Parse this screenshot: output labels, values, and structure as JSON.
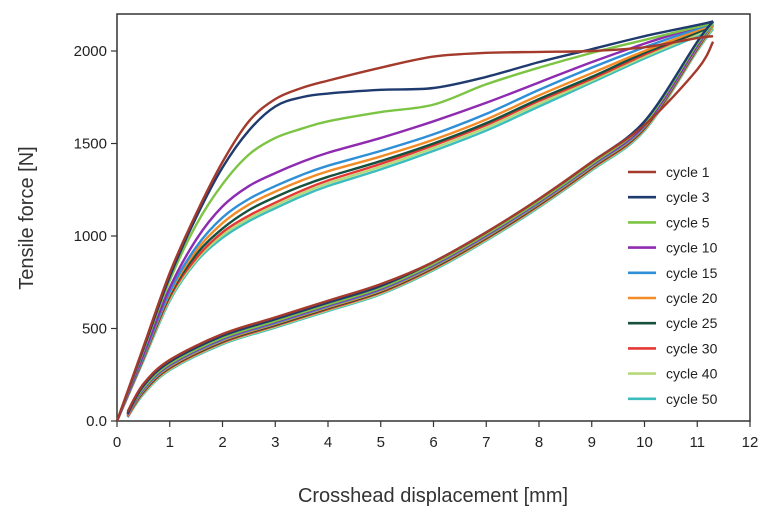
{
  "chart_data": {
    "type": "line",
    "xlabel": "Crosshead displacement [mm]",
    "ylabel": "Tensile force [N]",
    "xlim": [
      0,
      12
    ],
    "ylim": [
      0,
      2200
    ],
    "x_ticks": [
      "0",
      "1",
      "2",
      "3",
      "4",
      "5",
      "6",
      "7",
      "8",
      "9",
      "10",
      "11",
      "12"
    ],
    "x_tick_values": [
      0,
      1,
      2,
      3,
      4,
      5,
      6,
      7,
      8,
      9,
      10,
      11,
      12
    ],
    "y_ticks": [
      "0.0",
      "500",
      "1000",
      "1500",
      "2000"
    ],
    "y_tick_values": [
      0,
      500,
      1000,
      1500,
      2000
    ],
    "grid": false,
    "legend_position": "center-right",
    "series": [
      {
        "name": "cycle 1",
        "color": "#a33a2c",
        "loading": [
          [
            0,
            0
          ],
          [
            0.5,
            400
          ],
          [
            1,
            800
          ],
          [
            1.5,
            1120
          ],
          [
            2,
            1400
          ],
          [
            2.5,
            1620
          ],
          [
            3,
            1740
          ],
          [
            3.5,
            1800
          ],
          [
            4,
            1840
          ],
          [
            5,
            1910
          ],
          [
            6,
            1970
          ],
          [
            7,
            1990
          ],
          [
            8,
            1995
          ],
          [
            9,
            2000
          ],
          [
            10,
            2020
          ],
          [
            11,
            2070
          ],
          [
            11.3,
            2080
          ]
        ],
        "unloading": [
          [
            11.3,
            2050
          ],
          [
            11,
            1900
          ],
          [
            10,
            1600
          ],
          [
            9,
            1400
          ],
          [
            8,
            1200
          ],
          [
            7,
            1020
          ],
          [
            6,
            860
          ],
          [
            5,
            740
          ],
          [
            4,
            650
          ],
          [
            3,
            560
          ],
          [
            2,
            470
          ],
          [
            1,
            330
          ],
          [
            0.5,
            200
          ],
          [
            0.2,
            50
          ]
        ]
      },
      {
        "name": "cycle 3",
        "color": "#1f3a6e",
        "loading": [
          [
            0,
            0
          ],
          [
            0.5,
            390
          ],
          [
            1,
            780
          ],
          [
            1.5,
            1100
          ],
          [
            2,
            1370
          ],
          [
            2.5,
            1570
          ],
          [
            3,
            1700
          ],
          [
            3.5,
            1750
          ],
          [
            4,
            1770
          ],
          [
            5,
            1790
          ],
          [
            6,
            1800
          ],
          [
            7,
            1860
          ],
          [
            8,
            1940
          ],
          [
            9,
            2010
          ],
          [
            10,
            2080
          ],
          [
            11,
            2140
          ],
          [
            11.3,
            2160
          ]
        ],
        "unloading": [
          [
            11.3,
            2160
          ],
          [
            11,
            2050
          ],
          [
            10,
            1620
          ],
          [
            9,
            1400
          ],
          [
            8,
            1200
          ],
          [
            7,
            1020
          ],
          [
            6,
            860
          ],
          [
            5,
            730
          ],
          [
            4,
            640
          ],
          [
            3,
            550
          ],
          [
            2,
            460
          ],
          [
            1,
            320
          ],
          [
            0.5,
            190
          ],
          [
            0.2,
            40
          ]
        ]
      },
      {
        "name": "cycle 5",
        "color": "#7cc443",
        "loading": [
          [
            0,
            0
          ],
          [
            0.5,
            380
          ],
          [
            1,
            760
          ],
          [
            1.5,
            1060
          ],
          [
            2,
            1280
          ],
          [
            2.5,
            1440
          ],
          [
            3,
            1530
          ],
          [
            3.5,
            1580
          ],
          [
            4,
            1620
          ],
          [
            5,
            1670
          ],
          [
            6,
            1710
          ],
          [
            7,
            1820
          ],
          [
            8,
            1910
          ],
          [
            9,
            1990
          ],
          [
            10,
            2060
          ],
          [
            11,
            2130
          ],
          [
            11.3,
            2150
          ]
        ],
        "unloading": [
          [
            11.3,
            2150
          ],
          [
            11,
            2040
          ],
          [
            10,
            1610
          ],
          [
            9,
            1390
          ],
          [
            8,
            1190
          ],
          [
            7,
            1010
          ],
          [
            6,
            850
          ],
          [
            5,
            720
          ],
          [
            4,
            630
          ],
          [
            3,
            540
          ],
          [
            2,
            450
          ],
          [
            1,
            310
          ],
          [
            0.5,
            180
          ],
          [
            0.2,
            40
          ]
        ]
      },
      {
        "name": "cycle 10",
        "color": "#8e2bb0",
        "loading": [
          [
            0,
            0
          ],
          [
            0.5,
            360
          ],
          [
            1,
            720
          ],
          [
            1.5,
            980
          ],
          [
            2,
            1160
          ],
          [
            2.5,
            1270
          ],
          [
            3,
            1340
          ],
          [
            3.5,
            1400
          ],
          [
            4,
            1450
          ],
          [
            5,
            1530
          ],
          [
            6,
            1620
          ],
          [
            7,
            1720
          ],
          [
            8,
            1830
          ],
          [
            9,
            1940
          ],
          [
            10,
            2040
          ],
          [
            11,
            2130
          ],
          [
            11.3,
            2160
          ]
        ],
        "unloading": [
          [
            11.3,
            2160
          ],
          [
            11,
            2030
          ],
          [
            10,
            1600
          ],
          [
            9,
            1385
          ],
          [
            8,
            1185
          ],
          [
            7,
            1005
          ],
          [
            6,
            845
          ],
          [
            5,
            715
          ],
          [
            4,
            625
          ],
          [
            3,
            535
          ],
          [
            2,
            445
          ],
          [
            1,
            305
          ],
          [
            0.5,
            175
          ],
          [
            0.2,
            35
          ]
        ]
      },
      {
        "name": "cycle 15",
        "color": "#2f8fd6",
        "loading": [
          [
            0,
            0
          ],
          [
            0.5,
            350
          ],
          [
            1,
            700
          ],
          [
            1.5,
            940
          ],
          [
            2,
            1100
          ],
          [
            2.5,
            1200
          ],
          [
            3,
            1270
          ],
          [
            3.5,
            1330
          ],
          [
            4,
            1380
          ],
          [
            5,
            1460
          ],
          [
            6,
            1550
          ],
          [
            7,
            1660
          ],
          [
            8,
            1790
          ],
          [
            9,
            1910
          ],
          [
            10,
            2020
          ],
          [
            11,
            2120
          ],
          [
            11.3,
            2150
          ]
        ],
        "unloading": [
          [
            11.3,
            2150
          ],
          [
            11,
            2025
          ],
          [
            10,
            1595
          ],
          [
            9,
            1380
          ],
          [
            8,
            1180
          ],
          [
            7,
            1000
          ],
          [
            6,
            840
          ],
          [
            5,
            710
          ],
          [
            4,
            620
          ],
          [
            3,
            530
          ],
          [
            2,
            440
          ],
          [
            1,
            300
          ],
          [
            0.5,
            170
          ],
          [
            0.2,
            35
          ]
        ]
      },
      {
        "name": "cycle 20",
        "color": "#f28c28",
        "loading": [
          [
            0,
            0
          ],
          [
            0.5,
            345
          ],
          [
            1,
            690
          ],
          [
            1.5,
            920
          ],
          [
            2,
            1070
          ],
          [
            2.5,
            1170
          ],
          [
            3,
            1240
          ],
          [
            3.5,
            1300
          ],
          [
            4,
            1350
          ],
          [
            5,
            1430
          ],
          [
            6,
            1520
          ],
          [
            7,
            1630
          ],
          [
            8,
            1760
          ],
          [
            9,
            1880
          ],
          [
            10,
            2000
          ],
          [
            11,
            2110
          ],
          [
            11.3,
            2140
          ]
        ],
        "unloading": [
          [
            11.3,
            2140
          ],
          [
            11,
            2020
          ],
          [
            10,
            1590
          ],
          [
            9,
            1375
          ],
          [
            8,
            1175
          ],
          [
            7,
            995
          ],
          [
            6,
            835
          ],
          [
            5,
            705
          ],
          [
            4,
            615
          ],
          [
            3,
            525
          ],
          [
            2,
            435
          ],
          [
            1,
            295
          ],
          [
            0.5,
            165
          ],
          [
            0.2,
            30
          ]
        ]
      },
      {
        "name": "cycle 25",
        "color": "#16503e",
        "loading": [
          [
            0,
            0
          ],
          [
            0.5,
            340
          ],
          [
            1,
            680
          ],
          [
            1.5,
            900
          ],
          [
            2,
            1040
          ],
          [
            2.5,
            1140
          ],
          [
            3,
            1210
          ],
          [
            3.5,
            1270
          ],
          [
            4,
            1320
          ],
          [
            5,
            1405
          ],
          [
            6,
            1500
          ],
          [
            7,
            1610
          ],
          [
            8,
            1740
          ],
          [
            9,
            1860
          ],
          [
            10,
            1990
          ],
          [
            11,
            2100
          ],
          [
            11.3,
            2140
          ]
        ],
        "unloading": [
          [
            11.3,
            2140
          ],
          [
            11,
            2015
          ],
          [
            10,
            1585
          ],
          [
            9,
            1370
          ],
          [
            8,
            1170
          ],
          [
            7,
            990
          ],
          [
            6,
            830
          ],
          [
            5,
            700
          ],
          [
            4,
            610
          ],
          [
            3,
            520
          ],
          [
            2,
            430
          ],
          [
            1,
            290
          ],
          [
            0.5,
            160
          ],
          [
            0.2,
            30
          ]
        ]
      },
      {
        "name": "cycle 30",
        "color": "#e53935",
        "loading": [
          [
            0,
            0
          ],
          [
            0.5,
            335
          ],
          [
            1,
            670
          ],
          [
            1.5,
            880
          ],
          [
            2,
            1020
          ],
          [
            2.5,
            1110
          ],
          [
            3,
            1180
          ],
          [
            3.5,
            1245
          ],
          [
            4,
            1300
          ],
          [
            5,
            1390
          ],
          [
            6,
            1490
          ],
          [
            7,
            1600
          ],
          [
            8,
            1730
          ],
          [
            9,
            1850
          ],
          [
            10,
            1980
          ],
          [
            11,
            2100
          ],
          [
            11.3,
            2140
          ]
        ],
        "unloading": [
          [
            11.3,
            2140
          ],
          [
            11,
            2010
          ],
          [
            10,
            1580
          ],
          [
            9,
            1365
          ],
          [
            8,
            1165
          ],
          [
            7,
            985
          ],
          [
            6,
            825
          ],
          [
            5,
            695
          ],
          [
            4,
            605
          ],
          [
            3,
            515
          ],
          [
            2,
            425
          ],
          [
            1,
            285
          ],
          [
            0.5,
            155
          ],
          [
            0.2,
            25
          ]
        ]
      },
      {
        "name": "cycle 40",
        "color": "#b6d97a",
        "loading": [
          [
            0,
            0
          ],
          [
            0.5,
            330
          ],
          [
            1,
            660
          ],
          [
            1.5,
            870
          ],
          [
            2,
            1005
          ],
          [
            2.5,
            1095
          ],
          [
            3,
            1165
          ],
          [
            3.5,
            1230
          ],
          [
            4,
            1285
          ],
          [
            5,
            1375
          ],
          [
            6,
            1475
          ],
          [
            7,
            1585
          ],
          [
            8,
            1715
          ],
          [
            9,
            1840
          ],
          [
            10,
            1970
          ],
          [
            11,
            2090
          ],
          [
            11.3,
            2130
          ]
        ],
        "unloading": [
          [
            11.3,
            2130
          ],
          [
            11,
            2005
          ],
          [
            10,
            1575
          ],
          [
            9,
            1360
          ],
          [
            8,
            1160
          ],
          [
            7,
            980
          ],
          [
            6,
            820
          ],
          [
            5,
            690
          ],
          [
            4,
            600
          ],
          [
            3,
            510
          ],
          [
            2,
            420
          ],
          [
            1,
            280
          ],
          [
            0.5,
            150
          ],
          [
            0.2,
            25
          ]
        ]
      },
      {
        "name": "cycle 50",
        "color": "#3cbcbc",
        "loading": [
          [
            0,
            0
          ],
          [
            0.5,
            325
          ],
          [
            1,
            650
          ],
          [
            1.5,
            860
          ],
          [
            2,
            990
          ],
          [
            2.5,
            1080
          ],
          [
            3,
            1150
          ],
          [
            3.5,
            1215
          ],
          [
            4,
            1270
          ],
          [
            5,
            1360
          ],
          [
            6,
            1460
          ],
          [
            7,
            1570
          ],
          [
            8,
            1700
          ],
          [
            9,
            1830
          ],
          [
            10,
            1960
          ],
          [
            11,
            2080
          ],
          [
            11.3,
            2120
          ]
        ],
        "unloading": [
          [
            11.3,
            2120
          ],
          [
            11,
            2000
          ],
          [
            10,
            1570
          ],
          [
            9,
            1355
          ],
          [
            8,
            1155
          ],
          [
            7,
            975
          ],
          [
            6,
            815
          ],
          [
            5,
            685
          ],
          [
            4,
            595
          ],
          [
            3,
            505
          ],
          [
            2,
            415
          ],
          [
            1,
            275
          ],
          [
            0.5,
            145
          ],
          [
            0.2,
            20
          ]
        ]
      }
    ]
  }
}
